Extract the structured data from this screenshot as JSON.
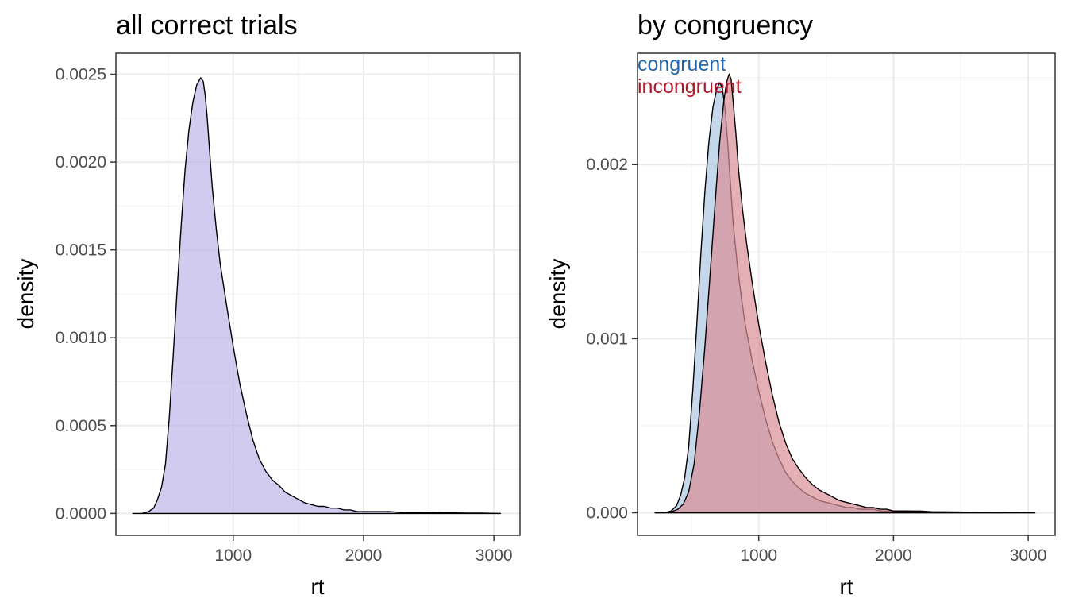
{
  "chart_data": [
    {
      "type": "area",
      "title": "all correct trials",
      "xlabel": "rt",
      "ylabel": "density",
      "xlim": [
        100,
        3200
      ],
      "ylim": [
        -0.000125,
        0.00262
      ],
      "x_ticks": [
        1000,
        2000,
        3000
      ],
      "x_tick_labels": [
        "1000",
        "2000",
        "3000"
      ],
      "y_ticks": [
        0,
        0.0005,
        0.001,
        0.0015,
        0.002,
        0.0025
      ],
      "y_tick_labels": [
        "0.0000",
        "0.0005",
        "0.0010",
        "0.0015",
        "0.0020",
        "0.0025"
      ],
      "grid": true,
      "legend": "none",
      "series": [
        {
          "color": "#b8b0e6",
          "x": [
            230,
            300,
            350,
            390,
            420,
            450,
            480,
            510,
            540,
            570,
            600,
            630,
            660,
            690,
            720,
            750,
            770,
            785,
            800,
            820,
            840,
            870,
            900,
            950,
            1000,
            1050,
            1100,
            1150,
            1200,
            1250,
            1300,
            1350,
            1400,
            1450,
            1500,
            1550,
            1600,
            1650,
            1700,
            1750,
            1800,
            1850,
            1900,
            1950,
            2000,
            2100,
            2200,
            2300,
            2400,
            2500,
            2600,
            2700,
            2800,
            2900,
            3050
          ],
          "y": [
            0,
            0,
            1e-05,
            3e-05,
            8e-05,
            0.00015,
            0.00028,
            0.00055,
            0.0009,
            0.00128,
            0.00163,
            0.00195,
            0.00218,
            0.00234,
            0.00244,
            0.00248,
            0.00246,
            0.00238,
            0.00226,
            0.00205,
            0.00185,
            0.00162,
            0.00142,
            0.00118,
            0.00095,
            0.00074,
            0.00057,
            0.00042,
            0.00031,
            0.00024,
            0.00019,
            0.00016,
            0.00012,
            0.0001,
            8e-05,
            6e-05,
            5e-05,
            4e-05,
            4e-05,
            3e-05,
            3e-05,
            2e-05,
            2e-05,
            1e-05,
            1e-05,
            1e-05,
            1e-05,
            5e-06,
            5e-06,
            4e-06,
            3e-06,
            3e-06,
            2e-06,
            2e-06,
            0
          ]
        }
      ]
    },
    {
      "type": "area",
      "title": "by congruency",
      "xlabel": "rt",
      "ylabel": "density",
      "xlim": [
        100,
        3200
      ],
      "ylim": [
        -0.00013,
        0.00264
      ],
      "x_ticks": [
        1000,
        2000,
        3000
      ],
      "x_tick_labels": [
        "1000",
        "2000",
        "3000"
      ],
      "y_ticks": [
        0,
        0.001,
        0.002
      ],
      "y_tick_labels": [
        "0.000",
        "0.001",
        "0.002"
      ],
      "grid": true,
      "legend": "top-left",
      "series": [
        {
          "name": "congruent",
          "color": "#2166ac",
          "fill": "#adc8e2",
          "x": [
            230,
            300,
            350,
            390,
            420,
            450,
            480,
            510,
            540,
            570,
            600,
            630,
            660,
            690,
            710,
            730,
            750,
            770,
            790,
            810,
            840,
            870,
            900,
            950,
            1000,
            1050,
            1100,
            1150,
            1200,
            1250,
            1300,
            1350,
            1400,
            1450,
            1500,
            1550,
            1600,
            1650,
            1700,
            1750,
            1800,
            1850,
            1900,
            1950,
            2000,
            2100,
            2200,
            2300,
            2400,
            2500,
            2600,
            2700,
            2800,
            2900,
            3050
          ],
          "y": [
            0,
            0,
            1e-05,
            4e-05,
            0.0001,
            0.0002,
            0.00038,
            0.0007,
            0.00108,
            0.00148,
            0.00184,
            0.00213,
            0.00233,
            0.00244,
            0.00247,
            0.00244,
            0.00232,
            0.00212,
            0.00189,
            0.00166,
            0.00143,
            0.00124,
            0.00108,
            0.00088,
            0.0007,
            0.00054,
            0.00041,
            0.00031,
            0.00023,
            0.00018,
            0.00014,
            0.00011,
            9e-05,
            7e-05,
            6e-05,
            5e-05,
            4e-05,
            3e-05,
            3e-05,
            2e-05,
            2e-05,
            2e-05,
            1e-05,
            1e-05,
            1e-05,
            1e-05,
            5e-06,
            5e-06,
            4e-06,
            3e-06,
            3e-06,
            2e-06,
            2e-06,
            1e-06,
            0
          ]
        },
        {
          "name": "incongruent",
          "color": "#b2182b",
          "fill": "#d88d95",
          "x": [
            230,
            300,
            350,
            400,
            440,
            480,
            520,
            560,
            600,
            640,
            680,
            710,
            740,
            760,
            780,
            795,
            810,
            830,
            850,
            880,
            910,
            950,
            1000,
            1050,
            1100,
            1150,
            1200,
            1250,
            1300,
            1350,
            1400,
            1450,
            1500,
            1550,
            1600,
            1650,
            1700,
            1750,
            1800,
            1850,
            1900,
            1950,
            2000,
            2100,
            2200,
            2300,
            2400,
            2500,
            2600,
            2700,
            2800,
            2900,
            3050
          ],
          "y": [
            0,
            0,
            5e-06,
            2e-05,
            5e-05,
            0.00012,
            0.00028,
            0.00058,
            0.00095,
            0.00138,
            0.00182,
            0.00213,
            0.00236,
            0.00247,
            0.00252,
            0.00249,
            0.00236,
            0.00218,
            0.00197,
            0.00174,
            0.00155,
            0.00133,
            0.00108,
            0.00087,
            0.00068,
            0.00052,
            0.0004,
            0.00031,
            0.00025,
            0.0002,
            0.00016,
            0.00013,
            0.00011,
            9e-05,
            7e-05,
            6e-05,
            5e-05,
            4e-05,
            3e-05,
            3e-05,
            2e-05,
            2e-05,
            1e-05,
            1e-05,
            1e-05,
            5e-06,
            5e-06,
            4e-06,
            3e-06,
            3e-06,
            2e-06,
            2e-06,
            0
          ]
        }
      ]
    }
  ]
}
